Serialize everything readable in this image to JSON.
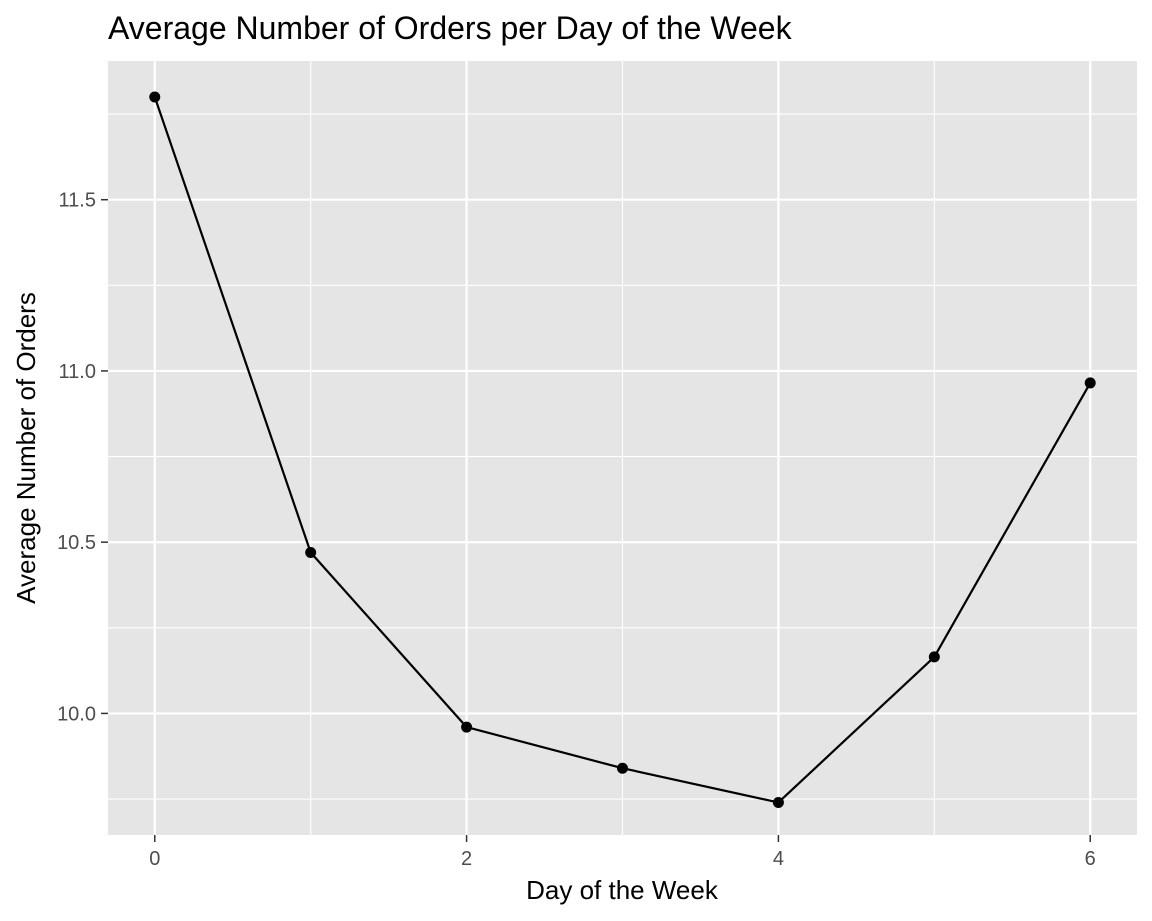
{
  "chart_data": {
    "type": "line",
    "title": "Average Number of Orders per Day of the Week",
    "xlabel": "Day of the Week",
    "ylabel": "Average Number of Orders",
    "x": [
      0,
      1,
      2,
      3,
      4,
      5,
      6
    ],
    "series": [
      {
        "values": [
          11.8,
          10.47,
          9.96,
          9.84,
          9.74,
          10.165,
          10.965
        ]
      }
    ],
    "xlim": [
      -0.3,
      6.3
    ],
    "ylim": [
      9.645,
      11.905
    ],
    "x_ticks": [
      0,
      2,
      4,
      6
    ],
    "x_tick_labels": [
      "0",
      "2",
      "4",
      "6"
    ],
    "y_ticks": [
      10.0,
      10.5,
      11.0,
      11.5
    ],
    "y_tick_labels": [
      "10.0",
      "10.5",
      "11.0",
      "11.5"
    ],
    "x_minor_ticks": [
      1,
      3,
      5
    ],
    "y_minor_ticks": [
      9.75,
      10.25,
      10.75,
      11.25,
      11.75
    ],
    "grid": true,
    "legend": "none",
    "colors": {
      "panel_background": "#e5e5e5",
      "grid": "#ffffff",
      "series": "#000000",
      "tick_label": "#4d4d4d",
      "axis_title": "#000000"
    }
  }
}
